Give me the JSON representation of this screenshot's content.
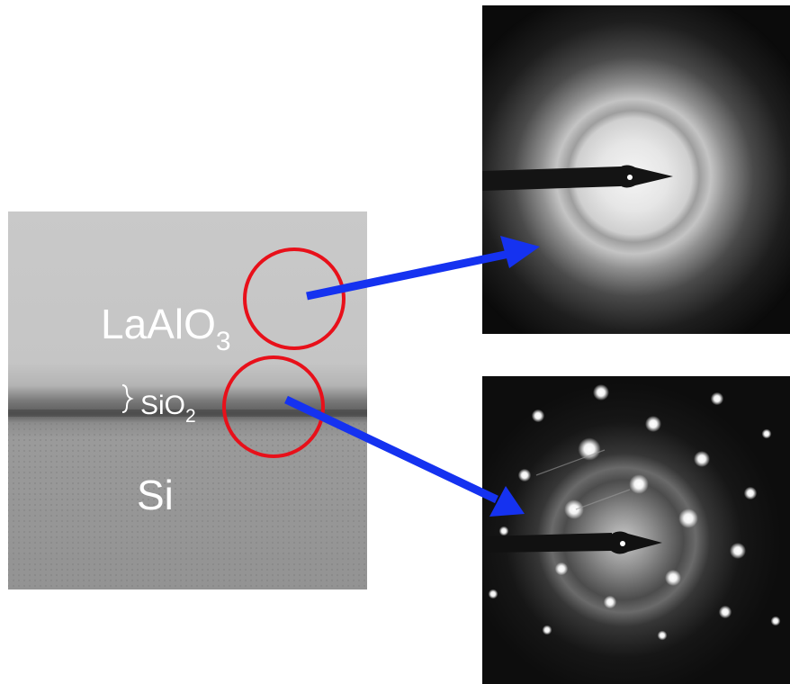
{
  "figure": {
    "layers": {
      "top": {
        "base": "LaAlO",
        "subscript": "3"
      },
      "interface": {
        "base": "SiO",
        "subscript": "2"
      },
      "substrate": {
        "base": "Si"
      }
    },
    "colors": {
      "circle": "#e8101a",
      "arrow": "#1532f0",
      "label": "#ffffff",
      "panel_background": "#0e0e0e"
    },
    "panels": [
      {
        "id": "amorphous-diffraction",
        "pattern": "diffuse-halo-rings"
      },
      {
        "id": "crystalline-diffraction",
        "pattern": "spot-lattice"
      }
    ]
  }
}
